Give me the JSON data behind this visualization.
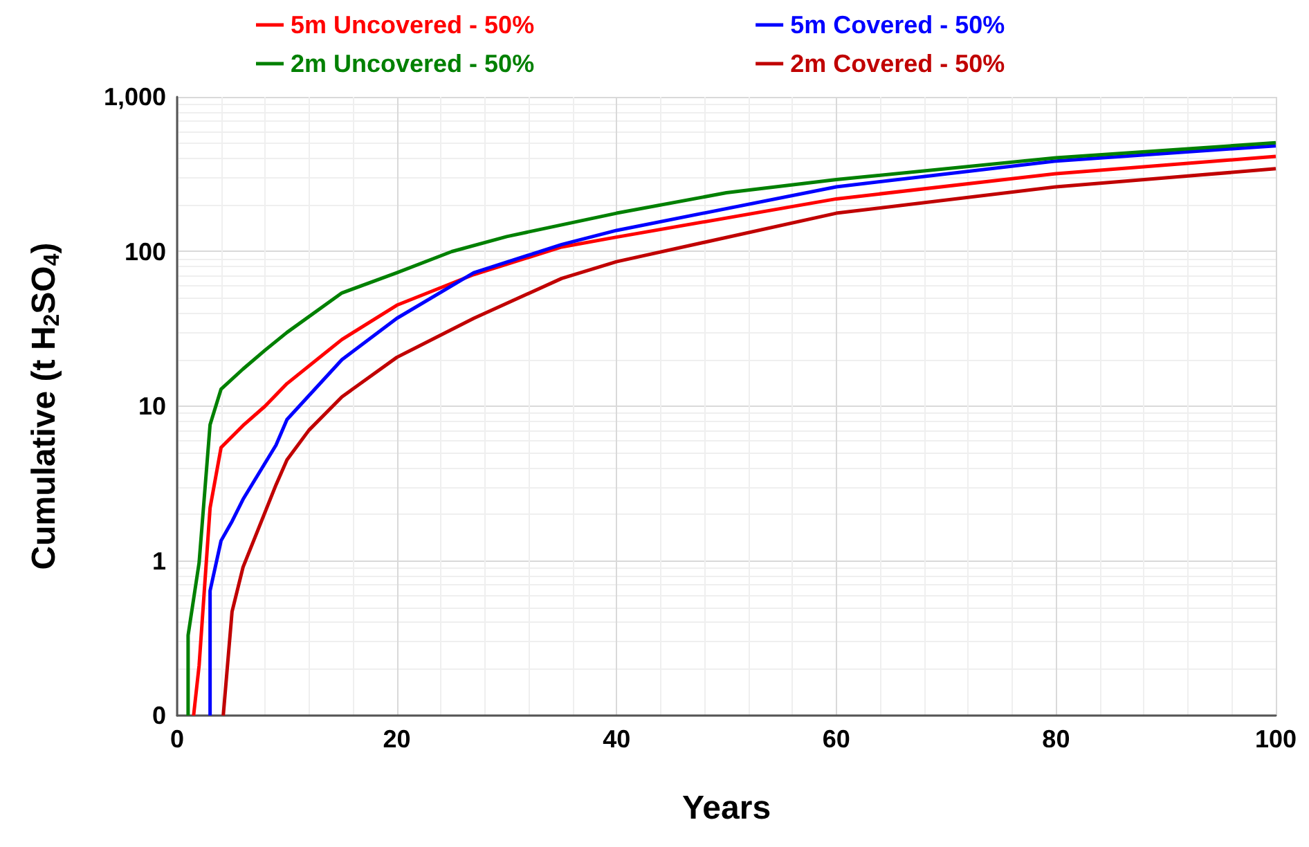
{
  "chart_data": {
    "type": "line",
    "xlabel": "Years",
    "ylabel": "Cumulative (t H$_{2}$SO$_{4}$)",
    "log": "y",
    "grid": true,
    "legend": "top",
    "xlim": [
      0,
      100
    ],
    "xticks": [
      0,
      20,
      40,
      60,
      80,
      100
    ],
    "ylim": [
      0.1,
      1000
    ],
    "yticks": [
      {
        "value": 0.1,
        "label": "0"
      },
      1,
      10,
      100,
      {
        "value": 1000,
        "label": "1,000"
      }
    ],
    "series": [
      {
        "name": "5m Uncovered - 50%",
        "color": "#ff0000",
        "x": [
          1.5,
          2,
          3,
          4,
          6,
          8,
          10,
          15,
          20,
          27,
          35,
          40,
          60,
          80,
          100
        ],
        "values": [
          0.1,
          0.21,
          2.2,
          5.4,
          7.5,
          10,
          14,
          27,
          45,
          71,
          107,
          124,
          219,
          319,
          412
        ]
      },
      {
        "name": "5m Covered - 50%",
        "color": "#0000ff",
        "x": [
          3,
          3,
          4,
          5,
          6,
          9,
          10,
          15,
          20,
          27,
          35,
          40,
          60,
          80,
          100
        ],
        "values": [
          0.1,
          0.64,
          1.35,
          1.8,
          2.5,
          5.6,
          8.2,
          20,
          37,
          73,
          111,
          137,
          262,
          385,
          483
        ]
      },
      {
        "name": "2m Uncovered - 50%",
        "color": "#008000",
        "x": [
          1,
          1,
          2,
          3,
          4,
          6,
          8,
          10,
          15,
          20,
          25,
          30,
          40,
          50,
          60,
          80,
          100
        ],
        "values": [
          0.1,
          0.33,
          0.97,
          7.6,
          12.9,
          17.4,
          23,
          30,
          54,
          73,
          100,
          125,
          177,
          240,
          292,
          404,
          505
        ]
      },
      {
        "name": "2m Covered - 50%",
        "color": "#c00000",
        "x": [
          4.2,
          5,
          6,
          9,
          10,
          12,
          15,
          20,
          27,
          35,
          40,
          60,
          80,
          100
        ],
        "values": [
          0.1,
          0.47,
          0.91,
          3.1,
          4.5,
          7,
          11.5,
          20.7,
          37,
          67,
          86,
          177,
          262,
          343
        ]
      }
    ]
  }
}
